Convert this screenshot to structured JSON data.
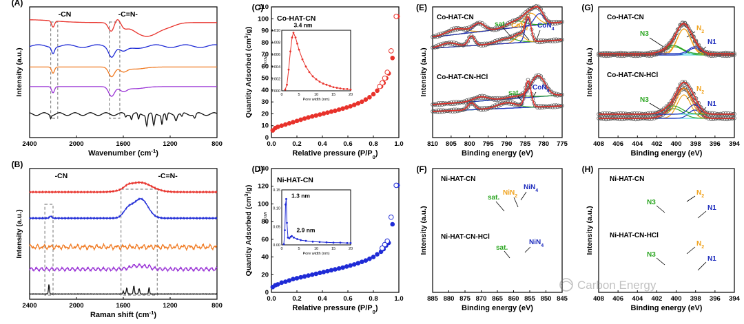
{
  "figure": {
    "watermark": "Carbon Energy",
    "colors": {
      "red": "#e8322b",
      "blue": "#1f2bd6",
      "orange": "#f07a22",
      "purple": "#9a34d6",
      "black": "#111111",
      "green": "#2aa520",
      "gold": "#f0a21c",
      "cyan": "#5fd6e8",
      "navy": "#1c2bbd",
      "gray": "#777777"
    }
  },
  "chart_data": [
    {
      "id": "A",
      "type": "line",
      "panel_label": "(A)",
      "xlabel": "Wavenumber (cm-1)",
      "ylabel": "Intensity (a.u.)",
      "xlim": [
        2400,
        800
      ],
      "xticks": [
        2400,
        2000,
        1600,
        1200,
        800
      ],
      "annotations": [
        "-CN",
        "-C=N-"
      ],
      "series": [
        {
          "name": "red",
          "color": "#e8322b",
          "baseline": 0.88
        },
        {
          "name": "blue",
          "color": "#1f2bd6",
          "baseline": 0.7
        },
        {
          "name": "orange",
          "color": "#f07a22",
          "baseline": 0.54
        },
        {
          "name": "purple",
          "color": "#9a34d6",
          "baseline": 0.39
        },
        {
          "name": "black",
          "color": "#111111",
          "baseline": 0.18
        }
      ]
    },
    {
      "id": "B",
      "type": "line",
      "panel_label": "(B)",
      "xlabel": "Raman shift (cm-1)",
      "ylabel": "Intensity (a.u.)",
      "xlim": [
        2400,
        800
      ],
      "xticks": [
        2400,
        2000,
        1600,
        1200,
        800
      ],
      "annotations": [
        "-CN",
        "-C=N-"
      ],
      "series": [
        {
          "name": "red",
          "color": "#e8322b",
          "baseline": 0.82
        },
        {
          "name": "blue",
          "color": "#1f2bd6",
          "baseline": 0.62
        },
        {
          "name": "orange",
          "color": "#f07a22",
          "baseline": 0.4
        },
        {
          "name": "purple",
          "color": "#9a34d6",
          "baseline": 0.23
        },
        {
          "name": "black",
          "color": "#111111",
          "baseline": 0.04
        }
      ]
    },
    {
      "id": "C",
      "type": "scatter",
      "panel_label": "(C)",
      "title": "Co-HAT-CN",
      "xlabel": "Relative pressure (P/P0)",
      "ylabel": "Quantity Adsorbed (cm3/g)",
      "xlim": [
        0,
        1.0
      ],
      "ylim": [
        0,
        110
      ],
      "xticks": [
        0.0,
        0.2,
        0.4,
        0.6,
        0.8,
        1.0
      ],
      "yticks": [
        0,
        10,
        20,
        30,
        40,
        50,
        60,
        70,
        80,
        90,
        100,
        110
      ],
      "color": "#e8322b",
      "adsorption": [
        [
          0.01,
          6
        ],
        [
          0.03,
          8
        ],
        [
          0.05,
          9
        ],
        [
          0.08,
          10
        ],
        [
          0.11,
          11
        ],
        [
          0.14,
          12
        ],
        [
          0.17,
          13
        ],
        [
          0.2,
          14
        ],
        [
          0.23,
          15
        ],
        [
          0.26,
          16
        ],
        [
          0.29,
          17
        ],
        [
          0.32,
          17.8
        ],
        [
          0.35,
          18.6
        ],
        [
          0.38,
          19.4
        ],
        [
          0.41,
          20.2
        ],
        [
          0.44,
          21
        ],
        [
          0.47,
          21.8
        ],
        [
          0.5,
          22.6
        ],
        [
          0.53,
          23.5
        ],
        [
          0.56,
          24.4
        ],
        [
          0.59,
          25.3
        ],
        [
          0.62,
          26.4
        ],
        [
          0.65,
          27.5
        ],
        [
          0.68,
          28.8
        ],
        [
          0.71,
          30.2
        ],
        [
          0.74,
          32
        ],
        [
          0.77,
          34
        ],
        [
          0.8,
          36.5
        ],
        [
          0.83,
          39.5
        ],
        [
          0.86,
          43
        ],
        [
          0.88,
          46
        ],
        [
          0.9,
          50
        ],
        [
          0.92,
          54
        ],
        [
          0.95,
          67
        ],
        [
          0.99,
          102
        ]
      ],
      "desorption": [
        [
          0.99,
          102
        ],
        [
          0.95,
          73
        ],
        [
          0.92,
          55
        ],
        [
          0.9,
          50
        ],
        [
          0.88,
          46
        ],
        [
          0.86,
          43
        ]
      ],
      "inset": {
        "xlabel": "Pore width (nm)",
        "ylabel": "dV/dW",
        "xlim": [
          0,
          20
        ],
        "ylim": [
          0,
          0.01
        ],
        "xticks": [
          0,
          5,
          10,
          15,
          20
        ],
        "yticks": [
          0.0,
          0.002,
          0.004,
          0.006,
          0.008,
          0.01
        ],
        "peak_label": "3.4 nm",
        "points": [
          [
            1.0,
            0.0002
          ],
          [
            1.5,
            0.001
          ],
          [
            2.0,
            0.0035
          ],
          [
            2.5,
            0.0065
          ],
          [
            3.0,
            0.0088
          ],
          [
            3.4,
            0.0096
          ],
          [
            4.0,
            0.0088
          ],
          [
            4.5,
            0.0078
          ],
          [
            5.0,
            0.0068
          ],
          [
            6.0,
            0.0052
          ],
          [
            7.0,
            0.004
          ],
          [
            8.0,
            0.0031
          ],
          [
            9.0,
            0.0024
          ],
          [
            10.0,
            0.0019
          ],
          [
            11.0,
            0.0015
          ],
          [
            12.0,
            0.0012
          ],
          [
            13.0,
            0.001
          ],
          [
            14.0,
            0.0008
          ],
          [
            15.0,
            0.0006
          ],
          [
            16.0,
            0.0005
          ],
          [
            17.0,
            0.0004
          ],
          [
            18.0,
            0.0003
          ],
          [
            19.0,
            0.0003
          ],
          [
            20.0,
            0.0002
          ]
        ]
      }
    },
    {
      "id": "D",
      "type": "scatter",
      "panel_label": "(D)",
      "title": "Ni-HAT-CN",
      "xlabel": "Relative pressure (P/P0)",
      "ylabel": "Quantity Adsorbed (cm3/g)",
      "xlim": [
        0,
        1.0
      ],
      "ylim": [
        0,
        140
      ],
      "xticks": [
        0.0,
        0.2,
        0.4,
        0.6,
        0.8,
        1.0
      ],
      "yticks": [
        0,
        20,
        40,
        60,
        80,
        100,
        120,
        140
      ],
      "color": "#1f2bd6",
      "adsorption": [
        [
          0.01,
          6
        ],
        [
          0.03,
          8
        ],
        [
          0.05,
          9
        ],
        [
          0.08,
          11
        ],
        [
          0.11,
          12
        ],
        [
          0.14,
          13.5
        ],
        [
          0.17,
          15
        ],
        [
          0.2,
          16
        ],
        [
          0.23,
          17
        ],
        [
          0.26,
          18
        ],
        [
          0.29,
          19
        ],
        [
          0.32,
          20
        ],
        [
          0.35,
          21
        ],
        [
          0.38,
          22
        ],
        [
          0.41,
          23
        ],
        [
          0.44,
          24
        ],
        [
          0.47,
          25
        ],
        [
          0.5,
          26
        ],
        [
          0.53,
          27
        ],
        [
          0.56,
          28
        ],
        [
          0.59,
          29.2
        ],
        [
          0.62,
          30.4
        ],
        [
          0.65,
          31.6
        ],
        [
          0.68,
          33
        ],
        [
          0.71,
          34.5
        ],
        [
          0.74,
          36
        ],
        [
          0.77,
          38
        ],
        [
          0.8,
          40
        ],
        [
          0.83,
          43
        ],
        [
          0.86,
          46
        ],
        [
          0.88,
          49
        ],
        [
          0.9,
          53
        ],
        [
          0.92,
          56
        ],
        [
          0.95,
          77
        ],
        [
          0.99,
          121
        ]
      ],
      "desorption": [
        [
          0.99,
          121
        ],
        [
          0.95,
          85
        ],
        [
          0.92,
          58
        ],
        [
          0.9,
          54
        ],
        [
          0.88,
          50
        ]
      ],
      "inset": {
        "xlabel": "Pore width (nm)",
        "ylabel": "dV/dW",
        "xlim": [
          0,
          20
        ],
        "ylim": [
          0,
          0.15
        ],
        "xticks": [
          0,
          5,
          10,
          15,
          20
        ],
        "yticks": [
          0.0,
          0.05,
          0.1,
          0.15
        ],
        "peak_label": "1.3 nm",
        "peak_label2": "2.9 nm",
        "points": [
          [
            0.6,
            0.002
          ],
          [
            0.9,
            0.04
          ],
          [
            1.1,
            0.11
          ],
          [
            1.3,
            0.125
          ],
          [
            1.5,
            0.06
          ],
          [
            1.8,
            0.02
          ],
          [
            2.2,
            0.018
          ],
          [
            2.6,
            0.022
          ],
          [
            2.9,
            0.024
          ],
          [
            3.5,
            0.02
          ],
          [
            4.5,
            0.016
          ],
          [
            5.5,
            0.013
          ],
          [
            7,
            0.011
          ],
          [
            9,
            0.009
          ],
          [
            11,
            0.008
          ],
          [
            13,
            0.007
          ],
          [
            15,
            0.006
          ],
          [
            17,
            0.006
          ],
          [
            19,
            0.005
          ],
          [
            20,
            0.005
          ]
        ]
      }
    },
    {
      "id": "E",
      "type": "line",
      "panel_label": "(E)",
      "xlabel": "Binding energy (eV)",
      "ylabel": "Intensity (a.u.)",
      "xlim": [
        810,
        775
      ],
      "xticks": [
        810,
        805,
        800,
        795,
        790,
        785,
        780,
        775
      ],
      "top_label": "Co-HAT-CN",
      "bottom_label": "Co-HAT-CN-HCl",
      "top_annotations": [
        "sat.",
        "CoN2",
        "CoN4"
      ],
      "bottom_annotations": [
        "sat.",
        "CoN4"
      ]
    },
    {
      "id": "F",
      "type": "line",
      "panel_label": "(F)",
      "xlabel": "Binding energy (eV)",
      "ylabel": "Intensity (a.u.)",
      "xlim": [
        885,
        845
      ],
      "xticks": [
        885,
        880,
        875,
        870,
        865,
        860,
        855,
        850,
        845
      ],
      "top_label": "Ni-HAT-CN",
      "bottom_label": "Ni-HAT-CN-HCl",
      "top_annotations": [
        "sat.",
        "NiN2",
        "NiN4"
      ],
      "bottom_annotations": [
        "sat.",
        "NiN4"
      ]
    },
    {
      "id": "G",
      "type": "line",
      "panel_label": "(G)",
      "xlabel": "Binding energy (eV)",
      "ylabel": "Intensity (a.u.)",
      "xlim": [
        408,
        394
      ],
      "xticks": [
        408,
        406,
        404,
        402,
        400,
        398,
        396,
        394
      ],
      "top_label": "Co-HAT-CN",
      "bottom_label": "Co-HAT-CN-HCl",
      "annotations": [
        "N3",
        "N2",
        "N1"
      ]
    },
    {
      "id": "H",
      "type": "line",
      "panel_label": "(H)",
      "xlabel": "Binding energy (eV)",
      "ylabel": "Intensity (a.u.)",
      "xlim": [
        408,
        394
      ],
      "xticks": [
        408,
        406,
        404,
        402,
        400,
        398,
        396,
        394
      ],
      "top_label": "Ni-HAT-CN",
      "bottom_label": "Ni-HAT-CN-HCl",
      "annotations": [
        "N3",
        "N2",
        "N1"
      ]
    }
  ]
}
